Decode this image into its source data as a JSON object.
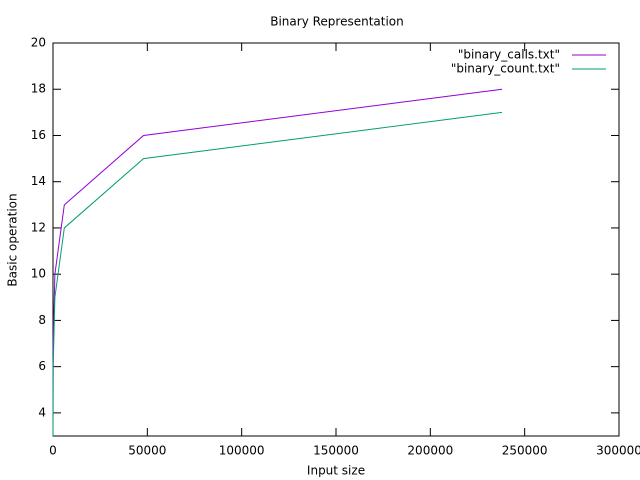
{
  "chart_data": {
    "type": "line",
    "title": "Binary Representation",
    "x_label": "Input size",
    "y_label": "Basic operation",
    "x": [
      10,
      100,
      1000,
      6000,
      48000,
      238000
    ],
    "series": [
      {
        "name": "\"binary_calls.txt\"",
        "color": "#9400d3",
        "values": [
          4,
          7,
          10,
          13,
          16,
          18
        ]
      },
      {
        "name": "\"binary_count.txt\"",
        "color": "#009e73",
        "values": [
          3,
          6,
          9,
          12,
          15,
          17
        ]
      }
    ],
    "xlim": [
      0,
      300000
    ],
    "xticks": [
      0,
      50000,
      100000,
      150000,
      200000,
      250000,
      300000
    ],
    "ylim": [
      3,
      20
    ],
    "yticks": [
      4,
      6,
      8,
      10,
      12,
      14,
      16,
      18,
      20
    ],
    "legend": "top-right",
    "grid": false
  }
}
